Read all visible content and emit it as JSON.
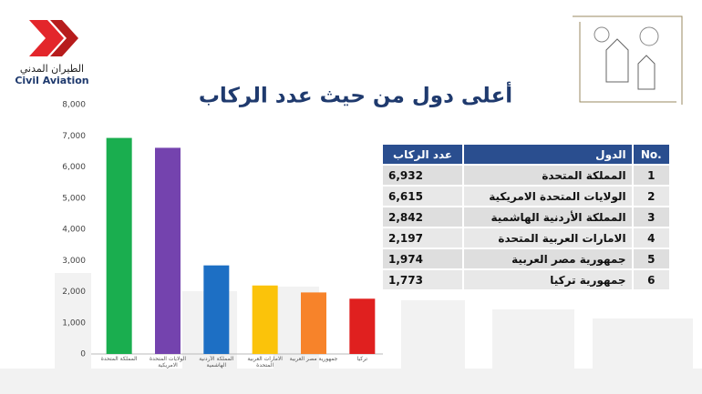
{
  "logo": {
    "arabic": "الطيران المدني",
    "english": "Civil Aviation"
  },
  "chart_data": {
    "type": "bar",
    "title": "أعلى دول من حيث عدد الركاب",
    "categories": [
      "المملكة المتحدة",
      "الولايات المتحدة الامريكية",
      "المملكة الأردنية الهاشمية",
      "الامارات العربية المتحدة",
      "جمهورية مصر العربية",
      "تركيا"
    ],
    "values": [
      6932,
      6615,
      2842,
      2197,
      1974,
      1773
    ],
    "colors": [
      "#1aae4f",
      "#7443ae",
      "#1d6fc4",
      "#fbc30a",
      "#f7832a",
      "#e0201f"
    ],
    "ylim": [
      0,
      8000
    ],
    "yticks": [
      0,
      {
        "value": 1000,
        "label": "1,000"
      },
      {
        "value": 2000,
        "label": "2,000"
      },
      {
        "value": 3000,
        "label": "3,000"
      },
      {
        "value": 4000,
        "label": "4,000"
      },
      {
        "value": 5000,
        "label": "5,000"
      },
      {
        "value": 6000,
        "label": "6,000"
      },
      {
        "value": 7000,
        "label": "7,000"
      },
      {
        "value": 8000,
        "label": "8,000"
      }
    ]
  },
  "table": {
    "header": [
      "No.",
      "الدول",
      "عدد الركاب"
    ],
    "rows": [
      [
        "1",
        "المملكة المتحدة",
        "6,932"
      ],
      [
        "2",
        "الولايات المتحدة الامريكية",
        "6,615"
      ],
      [
        "3",
        "المملكة الأردنية الهاشمية",
        "2,842"
      ],
      [
        "4",
        "الامارات العربية المتحدة",
        "2,197"
      ],
      [
        "5",
        "جمهورية مصر العربية",
        "1,974"
      ],
      [
        "6",
        "جمهورية تركيا",
        "1,773"
      ]
    ]
  }
}
